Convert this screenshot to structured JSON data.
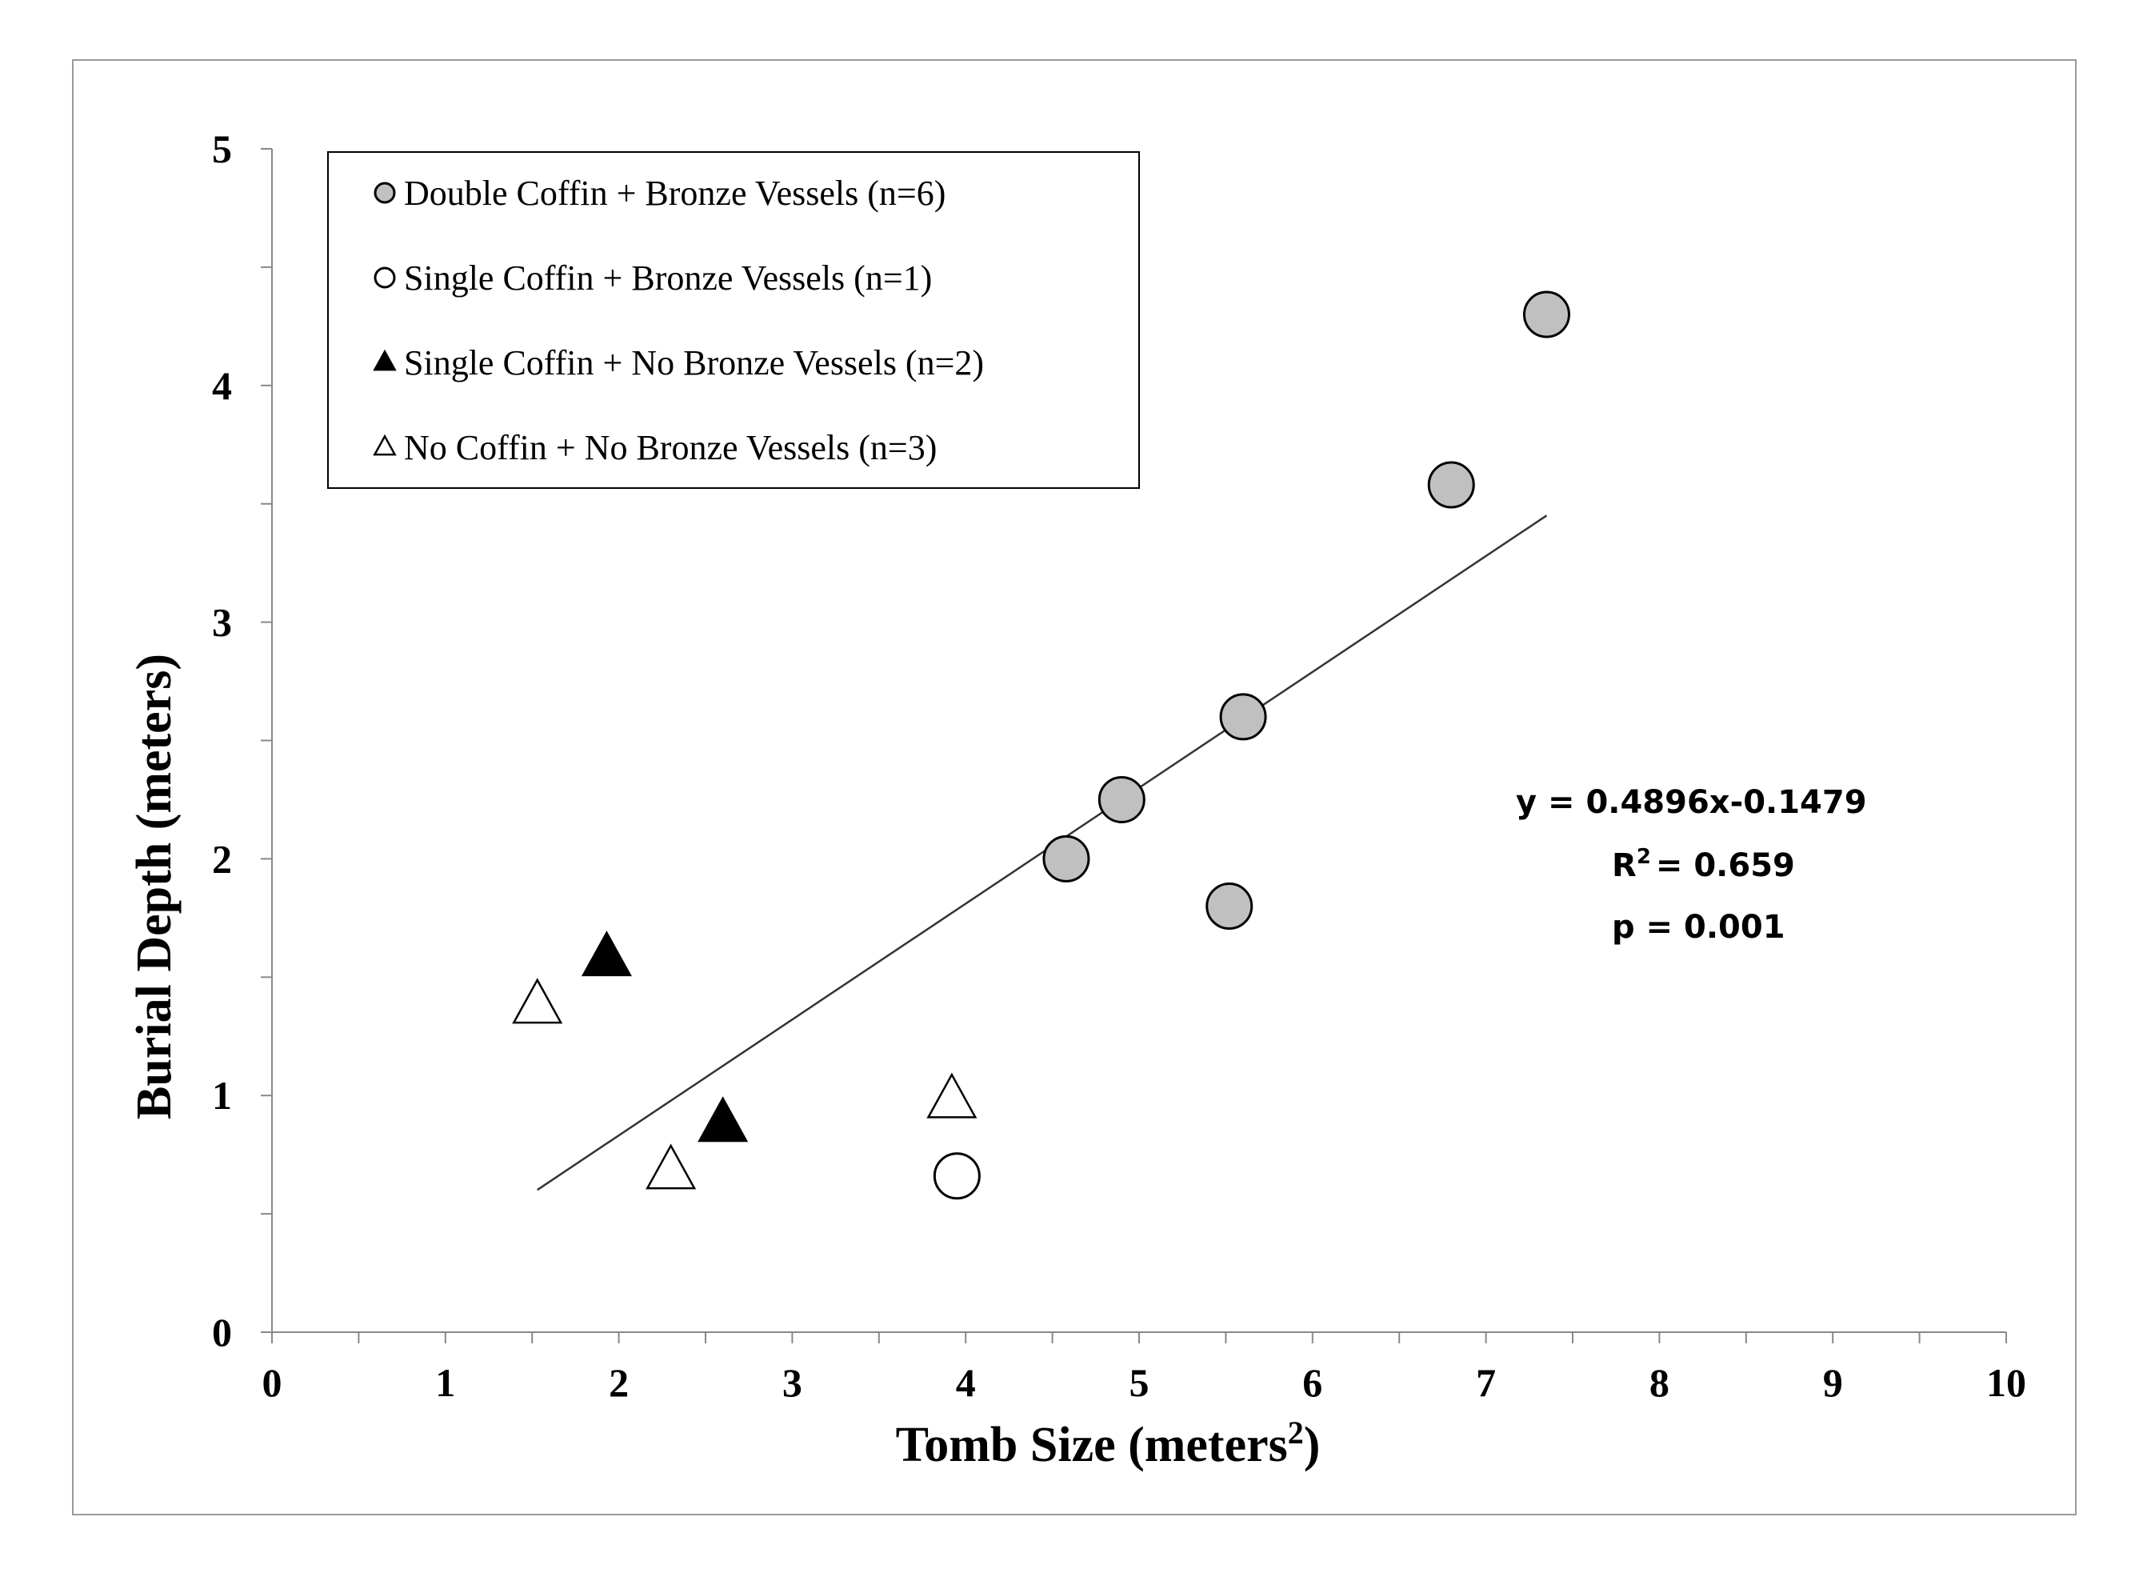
{
  "chart_data": {
    "type": "scatter",
    "xlabel": "Tomb Size (meters",
    "xlabel_superscript": "2",
    "xlabel_suffix": ")",
    "ylabel": "Burial Depth (meters)",
    "xlim": [
      0,
      10
    ],
    "ylim": [
      0,
      5
    ],
    "x_ticks": [
      "0",
      "1",
      "2",
      "3",
      "4",
      "5",
      "6",
      "7",
      "8",
      "9",
      "10"
    ],
    "y_ticks": [
      "0",
      "1",
      "2",
      "3",
      "4",
      "5"
    ],
    "grid": false,
    "legend_position": "top-left",
    "series": [
      {
        "name": "Double Coffin + Bronze Vessels (n=6)",
        "marker": "circle",
        "fill": "#c0c0c0",
        "points": [
          [
            4.58,
            2.0
          ],
          [
            4.9,
            2.25
          ],
          [
            5.6,
            2.6
          ],
          [
            5.52,
            1.8
          ],
          [
            6.8,
            3.58
          ],
          [
            7.35,
            4.3
          ]
        ]
      },
      {
        "name": "Single Coffin + Bronze Vessels (n=1)",
        "marker": "circle",
        "fill": "#ffffff",
        "points": [
          [
            3.95,
            0.66
          ]
        ]
      },
      {
        "name": "Single Coffin + No Bronze Vessels (n=2)",
        "marker": "triangle",
        "fill": "#000000",
        "points": [
          [
            1.93,
            1.58
          ],
          [
            2.6,
            0.88
          ]
        ]
      },
      {
        "name": "No Coffin + No Bronze Vessels (n=3)",
        "marker": "triangle",
        "fill": "#ffffff",
        "points": [
          [
            1.53,
            1.38
          ],
          [
            2.3,
            0.68
          ],
          [
            3.92,
            0.98
          ]
        ]
      }
    ],
    "trendline": {
      "slope": 0.4896,
      "intercept": -0.1479,
      "x_start": 1.53,
      "x_end": 7.35
    },
    "annotations": {
      "equation": "y = 0.4896x-0.1479",
      "r2_label": "R",
      "r2_superscript": "2",
      "r2_value": "= 0.659",
      "p_value": "p = 0.001"
    }
  }
}
